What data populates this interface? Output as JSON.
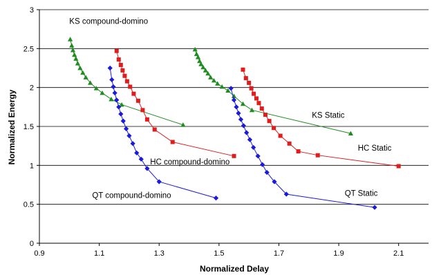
{
  "chart_data": {
    "type": "scatter",
    "xlabel": "Normalized Delay",
    "ylabel": "Normalized Energy",
    "xlim": [
      0.9,
      2.2
    ],
    "ylim": [
      0,
      3
    ],
    "xticks": [
      0.9,
      1.1,
      1.3,
      1.5,
      1.7,
      1.9,
      2.1
    ],
    "yticks": [
      0,
      0.5,
      1,
      1.5,
      2,
      2.5,
      3
    ],
    "xtick_labels": [
      "0.9",
      "1.1",
      "1.3",
      "1.5",
      "1.7",
      "1.9",
      "2.1"
    ],
    "ytick_labels": [
      "0",
      "0.5",
      "1",
      "1.5",
      "2",
      "2.5",
      "3"
    ],
    "grid": "horizontal major gridlines",
    "legend": "none (series labeled directly on plot)",
    "series": [
      {
        "name": "KS compound-domino",
        "color": "#1e8c1e",
        "marker": "triangle",
        "points": [
          [
            1.003,
            2.62
          ],
          [
            1.008,
            2.54
          ],
          [
            1.012,
            2.48
          ],
          [
            1.017,
            2.42
          ],
          [
            1.022,
            2.37
          ],
          [
            1.028,
            2.31
          ],
          [
            1.036,
            2.25
          ],
          [
            1.045,
            2.19
          ],
          [
            1.055,
            2.13
          ],
          [
            1.07,
            2.06
          ],
          [
            1.09,
            1.99
          ],
          [
            1.11,
            1.93
          ],
          [
            1.14,
            1.85
          ],
          [
            1.175,
            1.78
          ],
          [
            1.38,
            1.52
          ]
        ]
      },
      {
        "name": "HC compound-domino",
        "color": "#e01c1c",
        "marker": "square",
        "points": [
          [
            1.158,
            2.47
          ],
          [
            1.165,
            2.36
          ],
          [
            1.172,
            2.29
          ],
          [
            1.178,
            2.22
          ],
          [
            1.185,
            2.15
          ],
          [
            1.193,
            2.08
          ],
          [
            1.203,
            2.01
          ],
          [
            1.215,
            1.92
          ],
          [
            1.23,
            1.83
          ],
          [
            1.245,
            1.71
          ],
          [
            1.26,
            1.59
          ],
          [
            1.285,
            1.46
          ],
          [
            1.345,
            1.3
          ],
          [
            1.55,
            1.12
          ]
        ]
      },
      {
        "name": "QT compound-domino",
        "color": "#1a1adc",
        "marker": "diamond",
        "points": [
          [
            1.136,
            2.25
          ],
          [
            1.142,
            2.1
          ],
          [
            1.147,
            2.01
          ],
          [
            1.152,
            1.93
          ],
          [
            1.158,
            1.84
          ],
          [
            1.165,
            1.75
          ],
          [
            1.172,
            1.66
          ],
          [
            1.18,
            1.57
          ],
          [
            1.19,
            1.47
          ],
          [
            1.2,
            1.38
          ],
          [
            1.212,
            1.28
          ],
          [
            1.225,
            1.16
          ],
          [
            1.24,
            1.08
          ],
          [
            1.26,
            0.96
          ],
          [
            1.3,
            0.79
          ],
          [
            1.49,
            0.58
          ]
        ]
      },
      {
        "name": "KS Static",
        "color": "#1e8c1e",
        "marker": "triangle",
        "points": [
          [
            1.42,
            2.49
          ],
          [
            1.425,
            2.43
          ],
          [
            1.43,
            2.39
          ],
          [
            1.435,
            2.34
          ],
          [
            1.44,
            2.3
          ],
          [
            1.447,
            2.26
          ],
          [
            1.455,
            2.22
          ],
          [
            1.463,
            2.18
          ],
          [
            1.472,
            2.13
          ],
          [
            1.483,
            2.09
          ],
          [
            1.495,
            2.05
          ],
          [
            1.51,
            2.01
          ],
          [
            1.53,
            1.96
          ],
          [
            1.55,
            1.89
          ],
          [
            1.58,
            1.79
          ],
          [
            1.61,
            1.71
          ],
          [
            1.94,
            1.41
          ]
        ]
      },
      {
        "name": "HC Static",
        "color": "#e01c1c",
        "marker": "square",
        "points": [
          [
            1.58,
            2.23
          ],
          [
            1.59,
            2.12
          ],
          [
            1.6,
            2.06
          ],
          [
            1.608,
            1.99
          ],
          [
            1.616,
            1.92
          ],
          [
            1.625,
            1.86
          ],
          [
            1.633,
            1.8
          ],
          [
            1.643,
            1.73
          ],
          [
            1.655,
            1.65
          ],
          [
            1.668,
            1.57
          ],
          [
            1.683,
            1.48
          ],
          [
            1.705,
            1.38
          ],
          [
            1.735,
            1.28
          ],
          [
            1.765,
            1.18
          ],
          [
            1.83,
            1.13
          ],
          [
            2.1,
            0.99
          ]
        ]
      },
      {
        "name": "QT Static",
        "color": "#1a1adc",
        "marker": "diamond",
        "points": [
          [
            1.54,
            1.99
          ],
          [
            1.55,
            1.84
          ],
          [
            1.558,
            1.75
          ],
          [
            1.565,
            1.67
          ],
          [
            1.573,
            1.59
          ],
          [
            1.582,
            1.51
          ],
          [
            1.592,
            1.42
          ],
          [
            1.603,
            1.33
          ],
          [
            1.615,
            1.23
          ],
          [
            1.63,
            1.12
          ],
          [
            1.645,
            1.01
          ],
          [
            1.66,
            0.91
          ],
          [
            1.685,
            0.79
          ],
          [
            1.725,
            0.63
          ],
          [
            2.02,
            0.46
          ]
        ]
      }
    ],
    "annotations": [
      {
        "text": "KS compound-domino",
        "x": 1.0,
        "y": 2.82,
        "anchor": "start"
      },
      {
        "text": "HC compound-domino",
        "x": 1.27,
        "y": 1.01,
        "anchor": "start"
      },
      {
        "text": "QT compound-domino",
        "x": 1.34,
        "y": 0.58,
        "anchor": "end"
      },
      {
        "text": "KS Static",
        "x": 1.865,
        "y": 1.61,
        "anchor": "middle"
      },
      {
        "text": "HC Static",
        "x": 2.02,
        "y": 1.19,
        "anchor": "middle"
      },
      {
        "text": "QT Static",
        "x": 1.975,
        "y": 0.61,
        "anchor": "middle"
      }
    ]
  }
}
